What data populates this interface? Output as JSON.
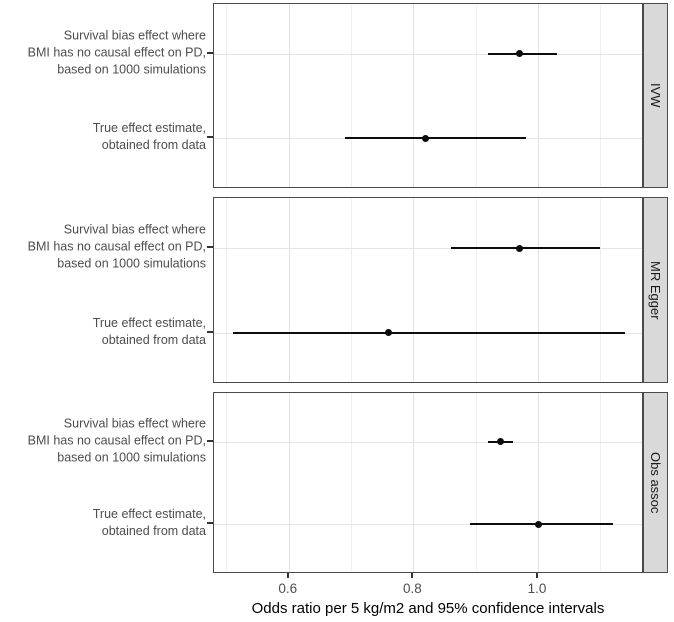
{
  "figure": {
    "colors": {
      "point": "#0d0d0d",
      "ci_line": "#0d0d0d",
      "strip_fill": "#d9d9d9",
      "panel_border": "#4a4a4a",
      "grid_major": "#e2e2e2",
      "grid_minor": "#f0f0f0",
      "axis_text": "#4d4d4d",
      "strip_text": "#1a1a1a",
      "axis_title": "#000000"
    }
  },
  "chart_data": {
    "type": "scatter",
    "subtype": "forest-plot-faceted",
    "title": "",
    "xlabel": "Odds ratio per 5 kg/m2 and 95% confidence intervals",
    "ylabel": "",
    "xlim": [
      0.48,
      1.17
    ],
    "x_major_ticks": [
      0.6,
      0.8,
      1.0
    ],
    "x_tick_labels": [
      "0.6",
      "0.8",
      "1.0"
    ],
    "x_minor_ticks": [
      0.5,
      0.7,
      0.9,
      1.1
    ],
    "grid": "on",
    "legend": "none",
    "row_labels": [
      {
        "id": "survival-bias",
        "lines": [
          "Survival bias effect where",
          "BMI has no causal effect on PD,",
          "based on 1000 simulations"
        ]
      },
      {
        "id": "true-effect",
        "lines": [
          "True effect estimate,",
          "obtained from data"
        ]
      }
    ],
    "panels": [
      {
        "label": "IVW",
        "rows": [
          {
            "category": "Survival bias effect where BMI has no causal effect on PD, based on 1000 simulations",
            "estimate": 0.97,
            "ci_low": 0.92,
            "ci_high": 1.03
          },
          {
            "category": "True effect estimate, obtained from data",
            "estimate": 0.82,
            "ci_low": 0.69,
            "ci_high": 0.98
          }
        ]
      },
      {
        "label": "MR Egger",
        "rows": [
          {
            "category": "Survival bias effect where BMI has no causal effect on PD, based on 1000 simulations",
            "estimate": 0.97,
            "ci_low": 0.86,
            "ci_high": 1.1
          },
          {
            "category": "True effect estimate, obtained from data",
            "estimate": 0.76,
            "ci_low": 0.51,
            "ci_high": 1.14
          }
        ]
      },
      {
        "label": "Obs assoc",
        "rows": [
          {
            "category": "Survival bias effect where BMI has no causal effect on PD, based on 1000 simulations",
            "estimate": 0.94,
            "ci_low": 0.92,
            "ci_high": 0.96
          },
          {
            "category": "True effect estimate, obtained from data",
            "estimate": 1.0,
            "ci_low": 0.89,
            "ci_high": 1.12
          }
        ]
      }
    ]
  }
}
